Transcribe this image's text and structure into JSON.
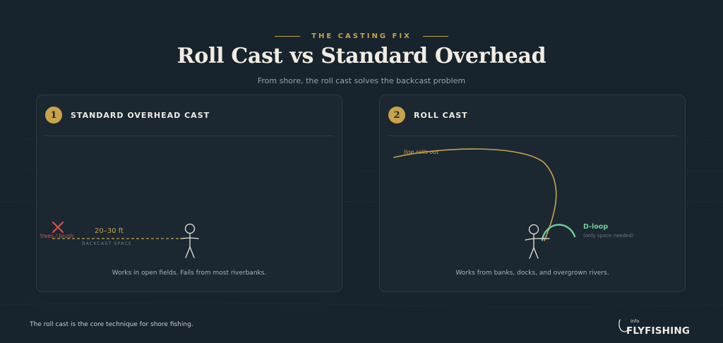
{
  "eyebrow": "THE CASTING FIX",
  "title": "Roll Cast vs Standard Overhead",
  "subtitle": "From shore, the roll cast solves the backcast problem",
  "panels": [
    {
      "number": "1",
      "heading": "STANDARD OVERHEAD CAST",
      "obstacle_label": "trees / brush",
      "distance_label": "20–30 ft",
      "space_label": "BACKCAST SPACE",
      "caption": "Works in open fields. Fails from most riverbanks."
    },
    {
      "number": "2",
      "heading": "ROLL CAST",
      "line_label": "line rolls out",
      "loop_label": "D-loop",
      "loop_note": "(only space needed)",
      "caption": "Works from banks, docks, and overgrown rivers."
    }
  ],
  "footnote": "The roll cast is the core technique for shore fishing.",
  "logo": {
    "small": "info",
    "main": "FLYFISHING"
  },
  "colors": {
    "background": "#17232d",
    "panel": "#1b2831",
    "accent_gold": "#c9a24a",
    "obstacle_red": "#d9534f",
    "loop_green": "#6fcf9a"
  },
  "icons": [
    "stick-figure-icon",
    "x-mark-icon",
    "fish-hook-icon"
  ]
}
